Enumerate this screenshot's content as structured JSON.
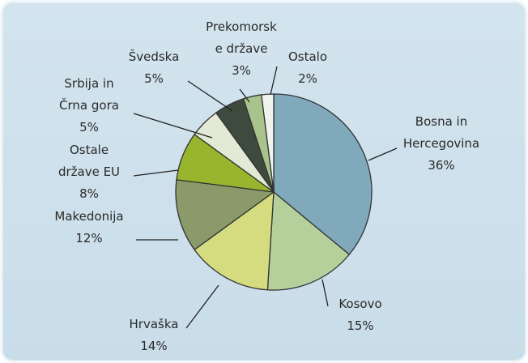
{
  "chart_data": {
    "type": "pie",
    "categories": [
      "Bosna in\nHercegovina",
      "Kosovo",
      "Hrvaška",
      "Makedonija",
      "Ostale\ndržave EU",
      "Srbija in\nČrna gora",
      "Švedska",
      "Prekomorsk\ne države",
      "Ostalo"
    ],
    "values": [
      36,
      15,
      14,
      12,
      8,
      5,
      5,
      3,
      2
    ],
    "value_labels": [
      "36%",
      "15%",
      "14%",
      "12%",
      "8%",
      "5%",
      "5%",
      "3%",
      "2%"
    ],
    "colors": [
      "#80aabb",
      "#b6d09c",
      "#d5dc80",
      "#8b9a6a",
      "#98b52e",
      "#e2e9d4",
      "#3f4a3f",
      "#a8c38c",
      "#eef3ee"
    ]
  }
}
